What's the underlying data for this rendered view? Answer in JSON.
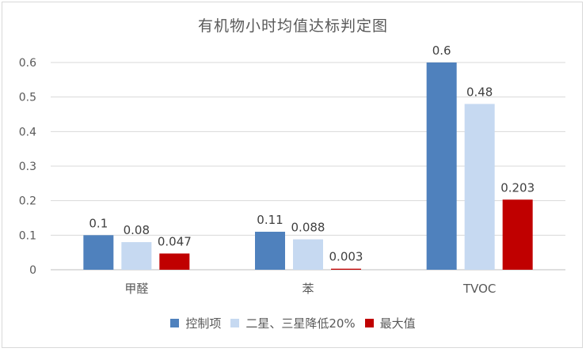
{
  "chart_data": {
    "type": "bar",
    "title": "有机物小时均值达标判定图",
    "categories": [
      "甲醛",
      "苯",
      "TVOC"
    ],
    "series": [
      {
        "name": "控制项",
        "values": [
          0.1,
          0.11,
          0.6
        ],
        "labels": [
          "0.1",
          "0.11",
          "0.6"
        ],
        "color": "#4f81bd"
      },
      {
        "name": "二星、三星降低20%",
        "values": [
          0.08,
          0.088,
          0.48
        ],
        "labels": [
          "0.08",
          "0.088",
          "0.48"
        ],
        "color": "#c6d9f1"
      },
      {
        "name": "最大值",
        "values": [
          0.047,
          0.003,
          0.203
        ],
        "labels": [
          "0.047",
          "0.003",
          "0.203"
        ],
        "color": "#c00000"
      }
    ],
    "ylim": [
      0,
      0.6
    ],
    "yticks": [
      "0",
      "0.1",
      "0.2",
      "0.3",
      "0.4",
      "0.5",
      "0.6"
    ],
    "grid": true,
    "legend_position": "bottom"
  }
}
